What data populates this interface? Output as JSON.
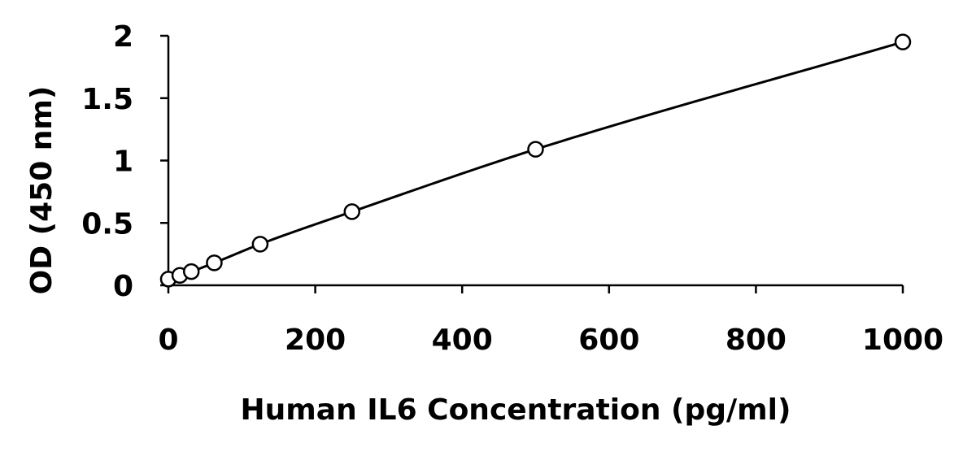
{
  "chart_data": {
    "type": "scatter",
    "title": "",
    "xlabel": "Human IL6 Concentration (pg/ml)",
    "ylabel": "OD (450 nm)",
    "xlim": [
      0,
      1000
    ],
    "ylim": [
      0,
      2
    ],
    "x_ticks": [
      0,
      200,
      400,
      600,
      800,
      1000
    ],
    "y_ticks": [
      0,
      0.5,
      1,
      1.5,
      2
    ],
    "x_tick_labels": [
      "0",
      "200",
      "400",
      "600",
      "800",
      "1000"
    ],
    "y_tick_labels": [
      "0",
      "0.5",
      "1",
      "1.5",
      "2"
    ],
    "grid": false,
    "legend": "none",
    "series": [
      {
        "marker": "open-circle",
        "line": "smooth-fit",
        "x": [
          0,
          15.6,
          31.25,
          62.5,
          125,
          250,
          500,
          1000
        ],
        "y": [
          0.05,
          0.08,
          0.11,
          0.18,
          0.33,
          0.59,
          1.09,
          1.95
        ]
      }
    ],
    "colors": {
      "line": "#000000",
      "marker_fill": "#ffffff",
      "marker_stroke": "#000000"
    }
  }
}
